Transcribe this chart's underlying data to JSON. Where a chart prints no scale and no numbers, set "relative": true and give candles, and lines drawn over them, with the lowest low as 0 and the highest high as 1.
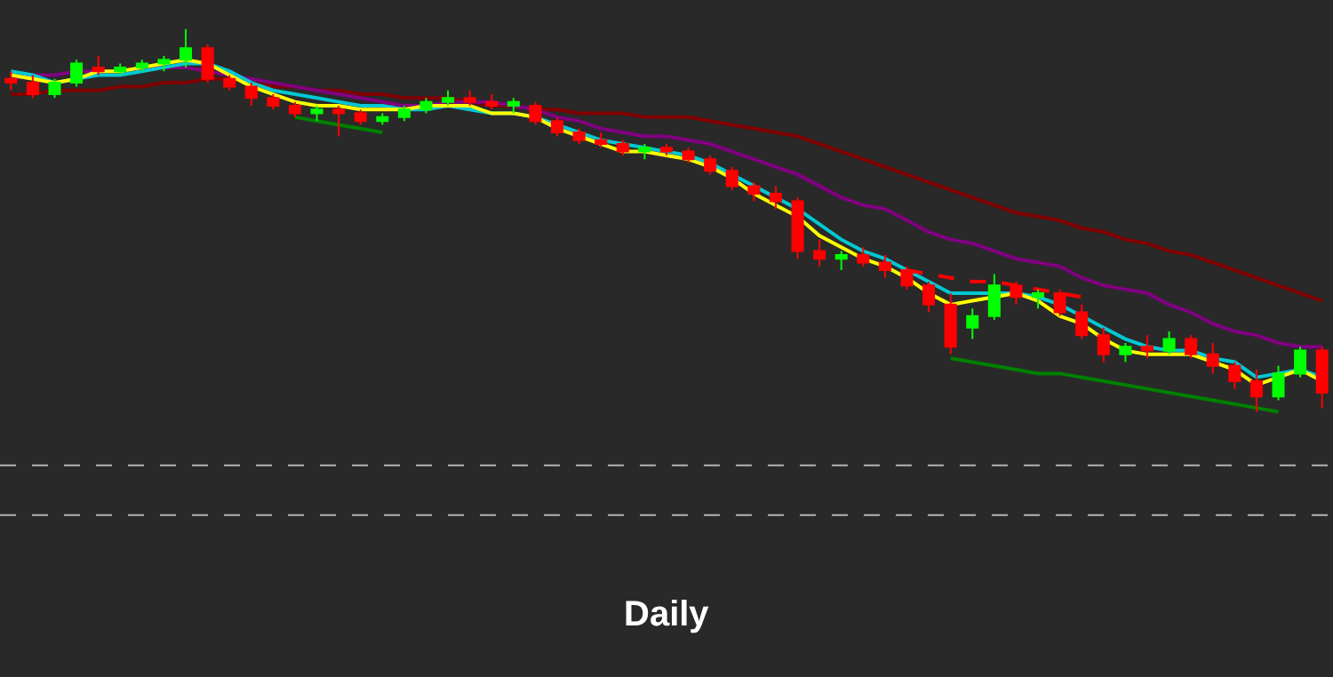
{
  "chart_data": {
    "type": "candlestick",
    "title": "Daily",
    "relative": true,
    "categories": [
      null,
      null,
      null,
      null,
      null,
      null,
      null,
      null,
      null,
      null,
      null,
      null,
      null,
      null,
      null,
      null,
      null,
      null,
      null,
      null,
      null,
      null,
      null,
      null,
      null,
      null,
      null,
      null,
      null,
      null,
      null,
      null,
      null,
      null,
      null,
      null,
      null,
      null,
      null,
      null,
      null,
      null,
      null,
      null,
      null,
      null,
      null,
      null,
      null,
      null,
      null,
      null,
      null,
      null,
      null,
      null,
      null,
      null,
      null,
      null,
      null
    ],
    "ohlc": [
      [
        0.87,
        0.89,
        0.84,
        0.86
      ],
      [
        0.86,
        0.88,
        0.82,
        0.83
      ],
      [
        0.83,
        0.87,
        0.82,
        0.86
      ],
      [
        0.86,
        0.92,
        0.85,
        0.91
      ],
      [
        0.9,
        0.93,
        0.88,
        0.89
      ],
      [
        0.89,
        0.91,
        0.88,
        0.9
      ],
      [
        0.9,
        0.92,
        0.89,
        0.91
      ],
      [
        0.91,
        0.93,
        0.89,
        0.92
      ],
      [
        0.92,
        1.0,
        0.9,
        0.95
      ],
      [
        0.95,
        0.96,
        0.86,
        0.87
      ],
      [
        0.87,
        0.88,
        0.84,
        0.85
      ],
      [
        0.85,
        0.86,
        0.8,
        0.82
      ],
      [
        0.82,
        0.83,
        0.79,
        0.8
      ],
      [
        0.8,
        0.81,
        0.77,
        0.78
      ],
      [
        0.78,
        0.8,
        0.76,
        0.79
      ],
      [
        0.79,
        0.8,
        0.72,
        0.78
      ],
      [
        0.78,
        0.79,
        0.75,
        0.76
      ],
      [
        0.76,
        0.78,
        0.75,
        0.77
      ],
      [
        0.77,
        0.8,
        0.76,
        0.79
      ],
      [
        0.79,
        0.82,
        0.78,
        0.81
      ],
      [
        0.81,
        0.84,
        0.8,
        0.82
      ],
      [
        0.82,
        0.84,
        0.8,
        0.81
      ],
      [
        0.81,
        0.83,
        0.79,
        0.8
      ],
      [
        0.8,
        0.82,
        0.78,
        0.81
      ],
      [
        0.8,
        0.81,
        0.75,
        0.76
      ],
      [
        0.76,
        0.77,
        0.72,
        0.73
      ],
      [
        0.73,
        0.74,
        0.7,
        0.71
      ],
      [
        0.71,
        0.73,
        0.69,
        0.7
      ],
      [
        0.7,
        0.71,
        0.67,
        0.68
      ],
      [
        0.68,
        0.7,
        0.66,
        0.69
      ],
      [
        0.69,
        0.7,
        0.67,
        0.68
      ],
      [
        0.68,
        0.69,
        0.65,
        0.66
      ],
      [
        0.66,
        0.67,
        0.62,
        0.63
      ],
      [
        0.63,
        0.64,
        0.58,
        0.59
      ],
      [
        0.59,
        0.6,
        0.55,
        0.57
      ],
      [
        0.57,
        0.59,
        0.53,
        0.55
      ],
      [
        0.55,
        0.56,
        0.4,
        0.42
      ],
      [
        0.42,
        0.45,
        0.38,
        0.4
      ],
      [
        0.4,
        0.42,
        0.37,
        0.41
      ],
      [
        0.41,
        0.43,
        0.38,
        0.39
      ],
      [
        0.39,
        0.41,
        0.35,
        0.37
      ],
      [
        0.37,
        0.38,
        0.32,
        0.33
      ],
      [
        0.33,
        0.34,
        0.26,
        0.28
      ],
      [
        0.28,
        0.31,
        0.15,
        0.17
      ],
      [
        0.22,
        0.27,
        0.19,
        0.25
      ],
      [
        0.25,
        0.36,
        0.24,
        0.33
      ],
      [
        0.33,
        0.34,
        0.28,
        0.3
      ],
      [
        0.3,
        0.32,
        0.27,
        0.31
      ],
      [
        0.31,
        0.32,
        0.25,
        0.26
      ],
      [
        0.26,
        0.28,
        0.19,
        0.2
      ],
      [
        0.2,
        0.22,
        0.13,
        0.15
      ],
      [
        0.15,
        0.18,
        0.13,
        0.17
      ],
      [
        0.17,
        0.2,
        0.14,
        0.16
      ],
      [
        0.16,
        0.21,
        0.15,
        0.19
      ],
      [
        0.19,
        0.2,
        0.14,
        0.15
      ],
      [
        0.15,
        0.18,
        0.1,
        0.12
      ],
      [
        0.12,
        0.13,
        0.06,
        0.08
      ],
      [
        0.08,
        0.11,
        0.0,
        0.04
      ],
      [
        0.04,
        0.12,
        0.03,
        0.1
      ],
      [
        0.1,
        0.17,
        0.09,
        0.16
      ],
      [
        0.16,
        0.17,
        0.01,
        0.05
      ]
    ],
    "colors": [
      "#ff0000",
      "#ff0000",
      "#00ff00",
      "#00ff00",
      "#ff0000",
      "#00ff00",
      "#00ff00",
      "#00ff00",
      "#00ff00",
      "#ff0000",
      "#ff0000",
      "#ff0000",
      "#ff0000",
      "#ff0000",
      "#00ff00",
      "#ff0000",
      "#ff0000",
      "#00ff00",
      "#00ff00",
      "#00ff00",
      "#00ff00",
      "#ff0000",
      "#ff0000",
      "#00ff00",
      "#ff0000",
      "#ff0000",
      "#ff0000",
      "#ff0000",
      "#ff0000",
      "#00ff00",
      "#ff0000",
      "#ff0000",
      "#ff0000",
      "#ff0000",
      "#ff0000",
      "#ff0000",
      "#ff0000",
      "#ff0000",
      "#00ff00",
      "#ff0000",
      "#ff0000",
      "#ff0000",
      "#ff0000",
      "#ff0000",
      "#00ff00",
      "#00ff00",
      "#ff0000",
      "#00ff00",
      "#ff0000",
      "#ff0000",
      "#ff0000",
      "#00ff00",
      "#ff0000",
      "#00ff00",
      "#ff0000",
      "#ff0000",
      "#ff0000",
      "#ff0000",
      "#00ff00",
      "#00ff00",
      "#ff0000"
    ],
    "series": [
      {
        "type": "line",
        "color": "#800000",
        "values": [
          0.83,
          0.83,
          0.84,
          0.84,
          0.84,
          0.85,
          0.85,
          0.86,
          0.86,
          0.87,
          0.87,
          0.86,
          0.85,
          0.85,
          0.84,
          0.84,
          0.83,
          0.83,
          0.82,
          0.82,
          0.82,
          0.81,
          0.8,
          0.8,
          0.79,
          0.79,
          0.78,
          0.78,
          0.78,
          0.77,
          0.77,
          0.77,
          0.76,
          0.75,
          0.74,
          0.73,
          0.72,
          0.7,
          0.68,
          0.66,
          0.64,
          0.62,
          0.6,
          0.58,
          0.56,
          0.54,
          0.52,
          0.51,
          0.5,
          0.48,
          0.47,
          0.45,
          0.44,
          0.42,
          0.41,
          0.39,
          0.37,
          0.35,
          0.33,
          0.31,
          0.29
        ]
      },
      {
        "type": "line",
        "color": "#800080",
        "values": [
          0.87,
          0.88,
          0.88,
          0.89,
          0.89,
          0.89,
          0.9,
          0.9,
          0.9,
          0.89,
          0.88,
          0.87,
          0.86,
          0.85,
          0.84,
          0.83,
          0.82,
          0.81,
          0.8,
          0.8,
          0.81,
          0.81,
          0.81,
          0.8,
          0.79,
          0.77,
          0.76,
          0.74,
          0.73,
          0.72,
          0.72,
          0.71,
          0.7,
          0.68,
          0.66,
          0.64,
          0.62,
          0.59,
          0.56,
          0.54,
          0.53,
          0.5,
          0.47,
          0.45,
          0.44,
          0.42,
          0.4,
          0.39,
          0.38,
          0.35,
          0.33,
          0.32,
          0.31,
          0.28,
          0.26,
          0.23,
          0.21,
          0.2,
          0.18,
          0.17,
          0.17
        ]
      },
      {
        "type": "line",
        "color": "#00c8d2",
        "values": [
          0.89,
          0.88,
          0.86,
          0.87,
          0.88,
          0.88,
          0.89,
          0.9,
          0.91,
          0.91,
          0.89,
          0.86,
          0.84,
          0.83,
          0.82,
          0.81,
          0.8,
          0.8,
          0.79,
          0.79,
          0.8,
          0.79,
          0.78,
          0.78,
          0.77,
          0.75,
          0.73,
          0.71,
          0.7,
          0.69,
          0.68,
          0.67,
          0.65,
          0.62,
          0.59,
          0.56,
          0.53,
          0.49,
          0.45,
          0.42,
          0.4,
          0.37,
          0.34,
          0.31,
          0.31,
          0.31,
          0.31,
          0.3,
          0.28,
          0.25,
          0.22,
          0.19,
          0.17,
          0.16,
          0.16,
          0.14,
          0.13,
          0.09,
          0.1,
          0.11,
          0.09
        ]
      },
      {
        "type": "line",
        "color": "#ffff00",
        "values": [
          0.88,
          0.87,
          0.86,
          0.87,
          0.89,
          0.89,
          0.9,
          0.91,
          0.92,
          0.91,
          0.88,
          0.85,
          0.83,
          0.81,
          0.8,
          0.8,
          0.79,
          0.79,
          0.79,
          0.8,
          0.8,
          0.8,
          0.78,
          0.78,
          0.77,
          0.74,
          0.72,
          0.7,
          0.68,
          0.68,
          0.67,
          0.66,
          0.64,
          0.61,
          0.57,
          0.54,
          0.51,
          0.46,
          0.43,
          0.4,
          0.38,
          0.35,
          0.31,
          0.28,
          0.29,
          0.3,
          0.31,
          0.29,
          0.25,
          0.23,
          0.19,
          0.16,
          0.15,
          0.15,
          0.15,
          0.13,
          0.11,
          0.07,
          0.09,
          0.11,
          0.08
        ]
      },
      {
        "type": "line",
        "color": "#008000",
        "values": [
          null,
          null,
          null,
          null,
          null,
          null,
          null,
          null,
          null,
          null,
          null,
          null,
          null,
          0.77,
          0.76,
          0.75,
          0.74,
          0.73,
          null,
          null,
          null,
          null,
          null,
          null,
          null,
          null,
          null,
          null,
          null,
          null,
          null,
          null,
          null,
          null,
          null,
          null,
          null,
          null,
          null,
          null,
          null,
          null,
          null,
          null,
          null,
          null,
          null,
          null,
          null,
          null,
          null,
          null,
          null,
          null,
          null,
          null,
          null,
          null,
          null,
          null,
          null
        ]
      },
      {
        "type": "line",
        "color": "#008000",
        "values": [
          null,
          null,
          null,
          null,
          null,
          null,
          null,
          null,
          null,
          null,
          null,
          null,
          null,
          null,
          null,
          null,
          null,
          null,
          null,
          null,
          null,
          null,
          null,
          null,
          null,
          null,
          null,
          null,
          null,
          null,
          null,
          null,
          null,
          null,
          null,
          null,
          null,
          null,
          null,
          null,
          null,
          null,
          null,
          0.14,
          0.13,
          0.12,
          0.11,
          0.1,
          0.1,
          0.09,
          0.08,
          0.07,
          0.06,
          0.05,
          0.04,
          0.03,
          0.02,
          0.01,
          0.0,
          null,
          null
        ]
      },
      {
        "type": "line",
        "color": "#ff0000",
        "line_style": "dashed",
        "values": [
          null,
          null,
          null,
          null,
          null,
          null,
          null,
          null,
          null,
          null,
          null,
          null,
          null,
          null,
          null,
          null,
          null,
          null,
          null,
          null,
          null,
          null,
          null,
          null,
          null,
          null,
          null,
          null,
          null,
          null,
          null,
          null,
          null,
          null,
          null,
          null,
          null,
          null,
          null,
          null,
          null,
          0.37,
          0.36,
          0.35,
          0.34,
          0.34,
          0.33,
          0.32,
          0.31,
          0.3,
          null,
          null,
          null,
          null,
          null,
          null,
          null,
          null,
          null,
          null,
          null
        ]
      }
    ],
    "ref_lines": [
      {
        "axis": "y",
        "value": -0.14,
        "color": "#b4b4b4",
        "line_style": "dashed"
      },
      {
        "axis": "y",
        "value": -0.27,
        "color": "#b4b4b4",
        "line_style": "dashed"
      }
    ]
  }
}
